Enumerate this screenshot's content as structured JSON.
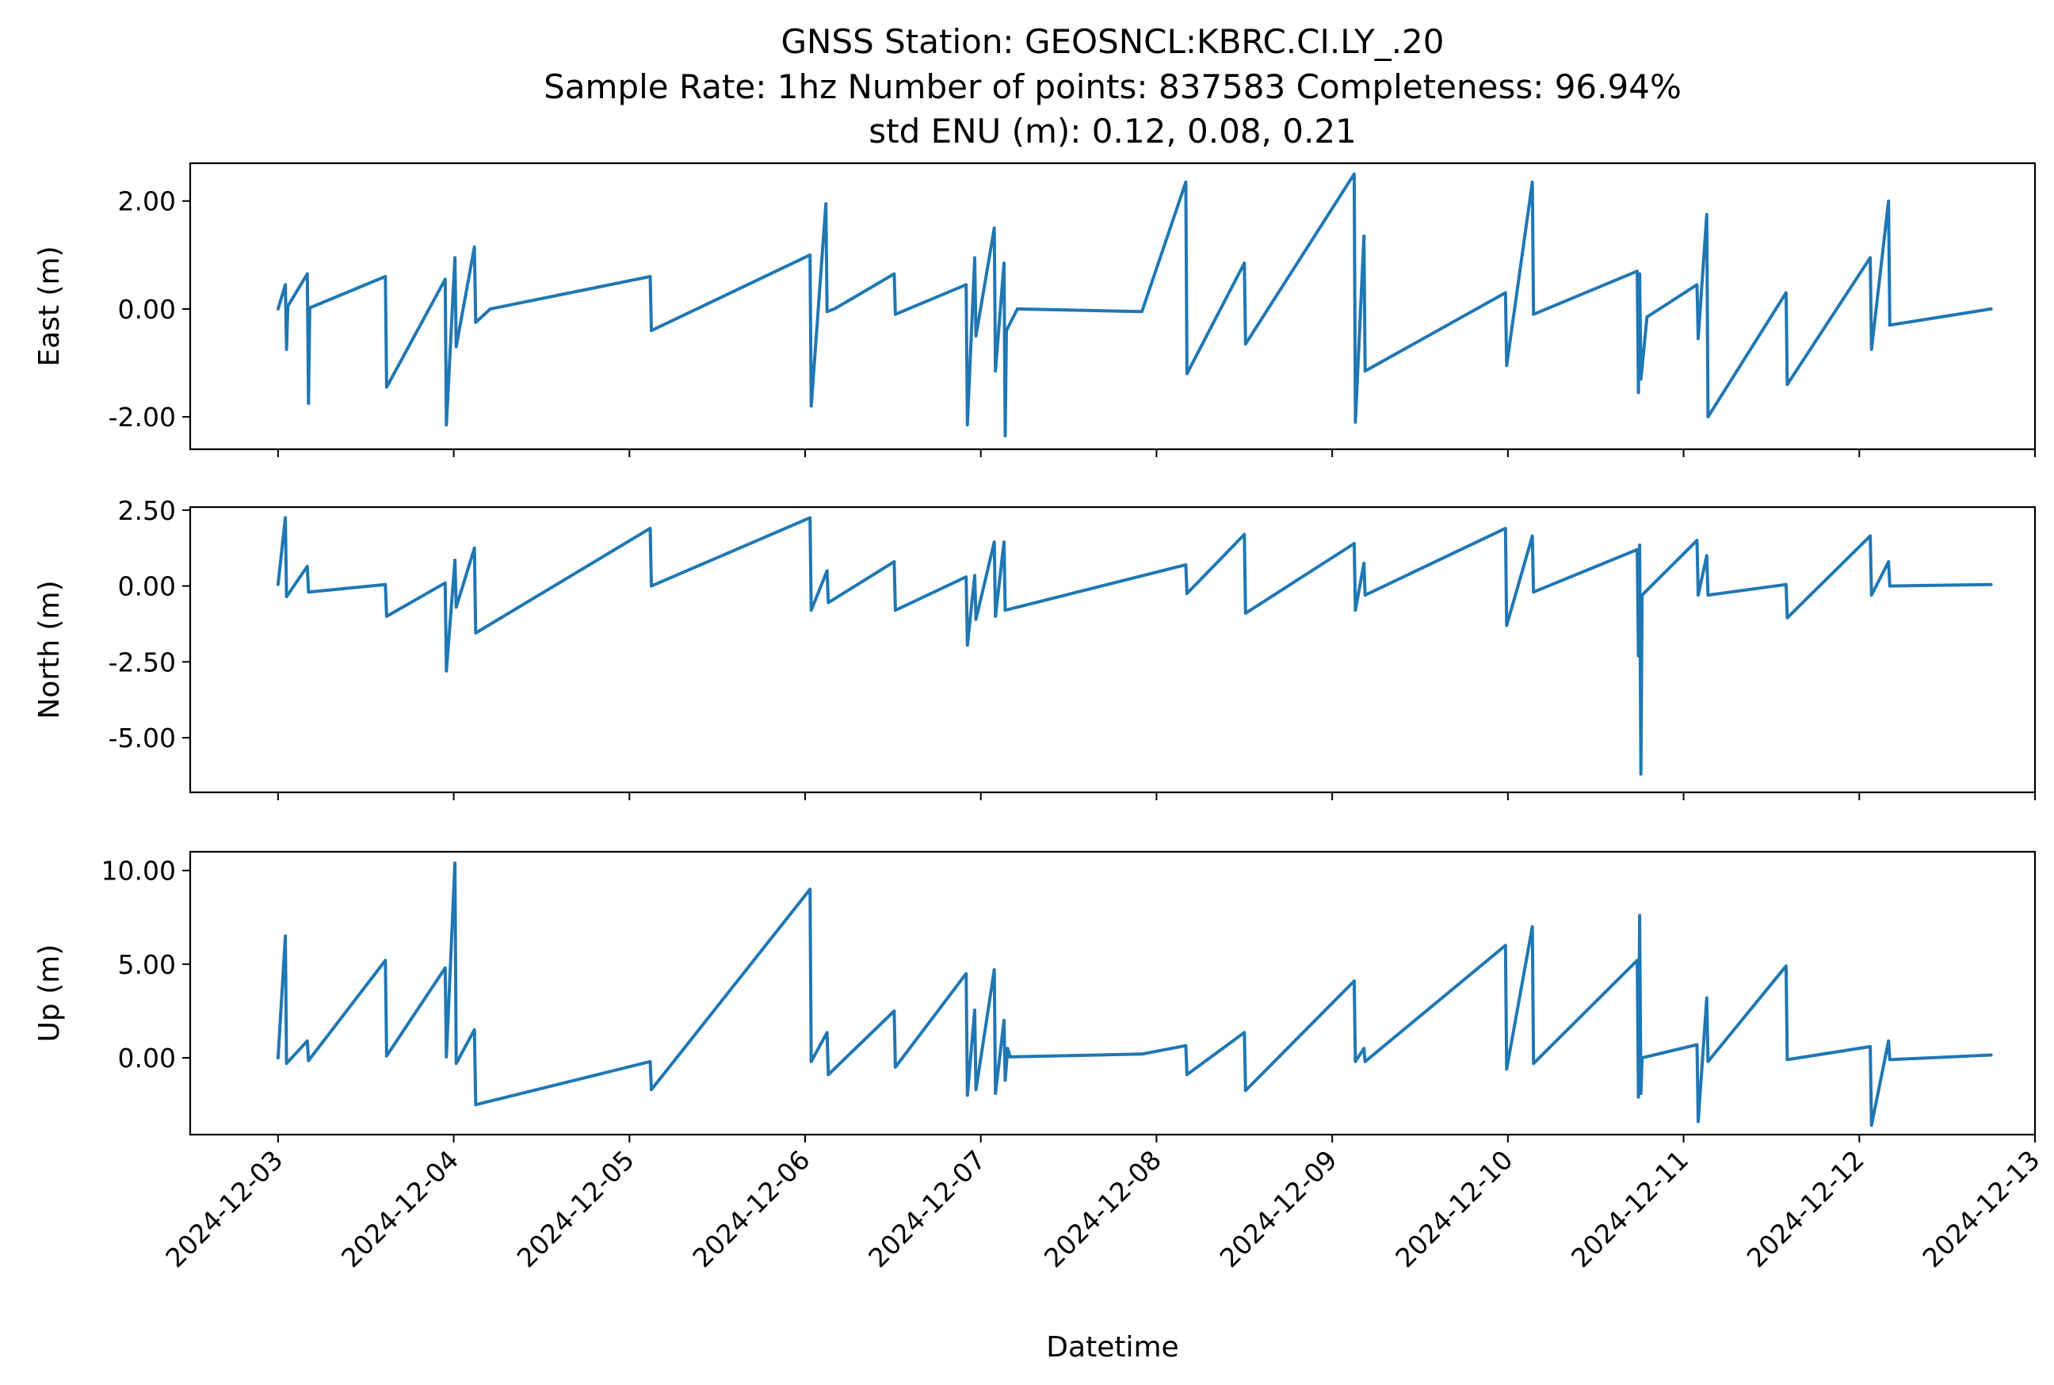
{
  "chart_data": {
    "type": "line",
    "title_lines": [
      "GNSS Station: GEOSNCL:KBRC.CI.LY_.20",
      "Sample Rate: 1hz   Number of points: 837583    Completeness:  96.94%",
      "std ENU (m):  0.12, 0.08, 0.21"
    ],
    "xlabel": "Datetime",
    "x_ticks": [
      "2024-12-03",
      "2024-12-04",
      "2024-12-05",
      "2024-12-06",
      "2024-12-07",
      "2024-12-08",
      "2024-12-09",
      "2024-12-10",
      "2024-12-11",
      "2024-12-12",
      "2024-12-13"
    ],
    "xlim": [
      "2024-12-02T12:00",
      "2024-12-13T00:00"
    ],
    "color": "#1f77b4",
    "grid": false,
    "panels": [
      {
        "ylabel": "East (m)",
        "ylim": [
          -2.6,
          2.7
        ],
        "yticks": [
          -2.0,
          0.0,
          2.0
        ],
        "ytick_labels": [
          "-2.00",
          "0.00",
          "2.00"
        ],
        "x": [
          "2024-12-03T00:00",
          "2024-12-03T01:00",
          "2024-12-03T01:10",
          "2024-12-03T01:20",
          "2024-12-03T04:00",
          "2024-12-03T04:10",
          "2024-12-03T04:20",
          "2024-12-03T14:40",
          "2024-12-03T14:50",
          "2024-12-03T22:50",
          "2024-12-03T23:00",
          "2024-12-04T00:10",
          "2024-12-04T00:20",
          "2024-12-04T02:50",
          "2024-12-04T03:00",
          "2024-12-04T05:00",
          "2024-12-05T02:50",
          "2024-12-05T03:00",
          "2024-12-06T00:40",
          "2024-12-06T00:50",
          "2024-12-06T02:50",
          "2024-12-06T03:00",
          "2024-12-06T04:00",
          "2024-12-06T12:10",
          "2024-12-06T12:20",
          "2024-12-06T22:00",
          "2024-12-06T22:10",
          "2024-12-06T23:10",
          "2024-12-06T23:20",
          "2024-12-07T01:50",
          "2024-12-07T02:00",
          "2024-12-07T03:10",
          "2024-12-07T03:20",
          "2024-12-07T03:30",
          "2024-12-07T05:00",
          "2024-12-07T22:00",
          "2024-12-08T04:00",
          "2024-12-08T04:10",
          "2024-12-08T12:00",
          "2024-12-08T12:10",
          "2024-12-09T03:00",
          "2024-12-09T03:10",
          "2024-12-09T04:20",
          "2024-12-09T04:30",
          "2024-12-09T23:40",
          "2024-12-09T23:50",
          "2024-12-10T03:20",
          "2024-12-10T03:30",
          "2024-12-10T17:40",
          "2024-12-10T17:50",
          "2024-12-10T18:00",
          "2024-12-10T18:10",
          "2024-12-10T19:00",
          "2024-12-11T01:50",
          "2024-12-11T02:00",
          "2024-12-11T03:10",
          "2024-12-11T03:20",
          "2024-12-11T14:00",
          "2024-12-11T14:10",
          "2024-12-12T01:30",
          "2024-12-12T01:40",
          "2024-12-12T04:00",
          "2024-12-12T04:10",
          "2024-12-12T18:00"
        ],
        "y": [
          0.0,
          0.45,
          -0.75,
          0.05,
          0.65,
          -1.75,
          0.02,
          0.6,
          -1.45,
          0.55,
          -2.15,
          0.95,
          -0.7,
          1.15,
          -0.25,
          0.0,
          0.6,
          -0.4,
          1.0,
          -1.8,
          1.95,
          -0.05,
          0.0,
          0.65,
          -0.1,
          0.45,
          -2.15,
          0.95,
          -0.5,
          1.5,
          -1.15,
          0.85,
          -2.35,
          -0.4,
          0.0,
          -0.05,
          2.35,
          -1.2,
          0.85,
          -0.65,
          2.5,
          -2.1,
          1.35,
          -1.15,
          0.3,
          -1.05,
          2.35,
          -0.1,
          0.7,
          -1.55,
          0.65,
          -1.3,
          -0.15,
          0.45,
          -0.55,
          1.75,
          -2.0,
          0.3,
          -1.4,
          0.95,
          -0.75,
          2.0,
          -0.3,
          0.0
        ]
      },
      {
        "ylabel": "North (m)",
        "ylim": [
          -6.8,
          2.6
        ],
        "yticks": [
          -5.0,
          -2.5,
          0.0,
          2.5
        ],
        "ytick_labels": [
          "-5.00",
          "-2.50",
          "0.00",
          "2.50"
        ],
        "x": [
          "2024-12-03T00:00",
          "2024-12-03T01:00",
          "2024-12-03T01:10",
          "2024-12-03T04:00",
          "2024-12-03T04:10",
          "2024-12-03T14:40",
          "2024-12-03T14:50",
          "2024-12-03T22:50",
          "2024-12-03T23:00",
          "2024-12-04T00:10",
          "2024-12-04T00:20",
          "2024-12-04T02:50",
          "2024-12-04T03:00",
          "2024-12-05T02:50",
          "2024-12-05T03:00",
          "2024-12-06T00:40",
          "2024-12-06T00:50",
          "2024-12-06T03:00",
          "2024-12-06T03:10",
          "2024-12-06T12:10",
          "2024-12-06T12:20",
          "2024-12-06T22:00",
          "2024-12-06T22:10",
          "2024-12-06T23:10",
          "2024-12-06T23:20",
          "2024-12-07T01:50",
          "2024-12-07T02:00",
          "2024-12-07T03:10",
          "2024-12-07T03:20",
          "2024-12-08T04:00",
          "2024-12-08T04:10",
          "2024-12-08T12:00",
          "2024-12-08T12:10",
          "2024-12-09T03:00",
          "2024-12-09T03:10",
          "2024-12-09T04:20",
          "2024-12-09T04:30",
          "2024-12-09T23:40",
          "2024-12-09T23:50",
          "2024-12-10T03:20",
          "2024-12-10T03:30",
          "2024-12-10T17:40",
          "2024-12-10T17:50",
          "2024-12-10T18:00",
          "2024-12-10T18:10",
          "2024-12-10T18:20",
          "2024-12-11T01:50",
          "2024-12-11T02:00",
          "2024-12-11T03:10",
          "2024-12-11T03:20",
          "2024-12-11T14:00",
          "2024-12-11T14:10",
          "2024-12-12T01:30",
          "2024-12-12T01:40",
          "2024-12-12T04:00",
          "2024-12-12T04:10",
          "2024-12-12T18:00"
        ],
        "y": [
          0.05,
          2.25,
          -0.35,
          0.65,
          -0.2,
          0.05,
          -1.0,
          0.1,
          -2.8,
          0.85,
          -0.7,
          1.25,
          -1.55,
          1.9,
          0.0,
          2.25,
          -0.8,
          0.5,
          -0.55,
          0.8,
          -0.8,
          0.3,
          -1.95,
          0.35,
          -1.1,
          1.45,
          -1.0,
          1.45,
          -0.8,
          0.7,
          -0.25,
          1.7,
          -0.9,
          1.4,
          -0.8,
          0.75,
          -0.3,
          1.9,
          -1.3,
          1.65,
          -0.2,
          1.2,
          -2.3,
          1.35,
          -6.2,
          -0.3,
          1.5,
          -0.3,
          1.0,
          -0.3,
          0.05,
          -1.05,
          1.65,
          -0.3,
          0.8,
          0.0,
          0.05
        ]
      },
      {
        "ylabel": "Up (m)",
        "ylim": [
          -4.1,
          11.0
        ],
        "yticks": [
          0.0,
          5.0,
          10.0
        ],
        "ytick_labels": [
          "0.00",
          "5.00",
          "10.00"
        ],
        "x": [
          "2024-12-03T00:00",
          "2024-12-03T01:00",
          "2024-12-03T01:10",
          "2024-12-03T04:00",
          "2024-12-03T04:10",
          "2024-12-03T14:40",
          "2024-12-03T14:50",
          "2024-12-03T22:50",
          "2024-12-03T23:00",
          "2024-12-04T00:10",
          "2024-12-04T00:20",
          "2024-12-04T02:50",
          "2024-12-04T03:00",
          "2024-12-05T02:50",
          "2024-12-05T03:00",
          "2024-12-06T00:40",
          "2024-12-06T00:50",
          "2024-12-06T03:00",
          "2024-12-06T03:10",
          "2024-12-06T12:10",
          "2024-12-06T12:20",
          "2024-12-06T22:00",
          "2024-12-06T22:10",
          "2024-12-06T23:10",
          "2024-12-06T23:20",
          "2024-12-07T01:50",
          "2024-12-07T02:00",
          "2024-12-07T03:10",
          "2024-12-07T03:20",
          "2024-12-07T03:40",
          "2024-12-07T04:00",
          "2024-12-07T22:00",
          "2024-12-08T04:00",
          "2024-12-08T04:10",
          "2024-12-08T12:00",
          "2024-12-08T12:10",
          "2024-12-09T03:00",
          "2024-12-09T03:10",
          "2024-12-09T04:20",
          "2024-12-09T04:30",
          "2024-12-09T23:40",
          "2024-12-09T23:50",
          "2024-12-10T03:20",
          "2024-12-10T03:30",
          "2024-12-10T17:40",
          "2024-12-10T17:50",
          "2024-12-10T18:00",
          "2024-12-10T18:10",
          "2024-12-10T18:20",
          "2024-12-11T01:50",
          "2024-12-11T02:00",
          "2024-12-11T03:10",
          "2024-12-11T03:20",
          "2024-12-11T14:00",
          "2024-12-11T14:10",
          "2024-12-12T01:30",
          "2024-12-12T01:40",
          "2024-12-12T04:00",
          "2024-12-12T04:10",
          "2024-12-12T18:00"
        ],
        "y": [
          0.0,
          6.5,
          -0.3,
          0.9,
          -0.15,
          5.2,
          0.1,
          4.8,
          0.05,
          10.4,
          -0.3,
          1.5,
          -2.5,
          -0.2,
          -1.7,
          9.0,
          -0.2,
          1.35,
          -0.9,
          2.5,
          -0.5,
          4.5,
          -2.0,
          2.55,
          -1.7,
          4.7,
          -1.9,
          2.0,
          -1.2,
          0.5,
          0.05,
          0.2,
          0.65,
          -0.9,
          1.35,
          -1.75,
          4.1,
          -0.2,
          0.5,
          -0.2,
          6.0,
          -0.6,
          7.0,
          -0.3,
          5.2,
          -2.1,
          7.6,
          -1.9,
          0.0,
          0.7,
          -3.4,
          3.2,
          -0.2,
          4.9,
          -0.1,
          0.6,
          -3.6,
          0.9,
          -0.1,
          0.15
        ]
      }
    ]
  }
}
